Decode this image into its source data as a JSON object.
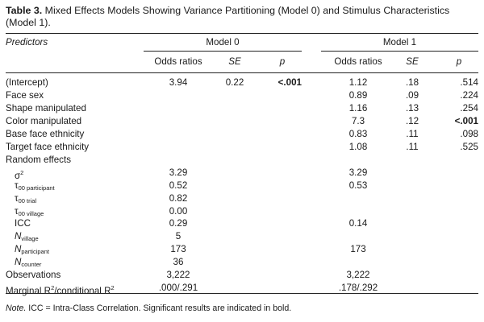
{
  "caption": {
    "label": "Table 3.",
    "text": "Mixed Effects Models Showing Variance Partitioning (Model 0) and Stimulus Characteristics (Model 1)."
  },
  "header": {
    "predictors": "Predictors",
    "model0": "Model 0",
    "model1": "Model 1",
    "odds": "Odds ratios",
    "se": "SE",
    "p": "p"
  },
  "rows": [
    {
      "label": "(Intercept)",
      "m0_or": "3.94",
      "m0_se": "0.22",
      "m0_p": "<.001",
      "m1_or": "1.12",
      "m1_se": ".18",
      "m1_p": ".514"
    },
    {
      "label": "Face sex",
      "m1_or": "0.89",
      "m1_se": ".09",
      "m1_p": ".224"
    },
    {
      "label": "Shape manipulated",
      "m1_or": "1.16",
      "m1_se": ".13",
      "m1_p": ".254"
    },
    {
      "label": "Color manipulated",
      "m1_or": "7.3",
      "m1_se": ".12",
      "m1_p": "<.001"
    },
    {
      "label": "Base face ethnicity",
      "m1_or": "0.83",
      "m1_se": ".11",
      "m1_p": ".098"
    },
    {
      "label": "Target face ethnicity",
      "m1_or": "1.08",
      "m1_se": ".11",
      "m1_p": ".525"
    },
    {
      "label": "Random effects"
    },
    {
      "label_main": "σ",
      "label_sup": "2",
      "m0_or": "3.29",
      "m1_or": "3.29"
    },
    {
      "label_main": "τ",
      "label_sub": "00 participant",
      "m0_or": "0.52",
      "m1_or": "0.53"
    },
    {
      "label_main": "τ",
      "label_sub": "00 trial",
      "m0_or": "0.82"
    },
    {
      "label_main": "τ",
      "label_sub": "00 village",
      "m0_or": "0.00"
    },
    {
      "label": "ICC",
      "m0_or": "0.29",
      "m1_or": "0.14"
    },
    {
      "label_main": "N",
      "label_sub": "village",
      "m0_or": "5"
    },
    {
      "label_main": "N",
      "label_sub": "participant",
      "m0_or": "173",
      "m1_or": "173"
    },
    {
      "label_main": "N",
      "label_sub": "counter",
      "m0_or": "36"
    },
    {
      "label": "Observations",
      "m0_or": "3,222",
      "m1_or": "3,222"
    },
    {
      "label_main": "Marginal R",
      "label_sup": "2",
      "label_tail": "/conditional R",
      "label_sup2": "2",
      "m0_or": ".000/.291",
      "m1_or": ".178/.292"
    }
  ],
  "note": {
    "prefix": "Note.",
    "text": "ICC = Intra-Class Correlation. Significant results are indicated in bold."
  }
}
